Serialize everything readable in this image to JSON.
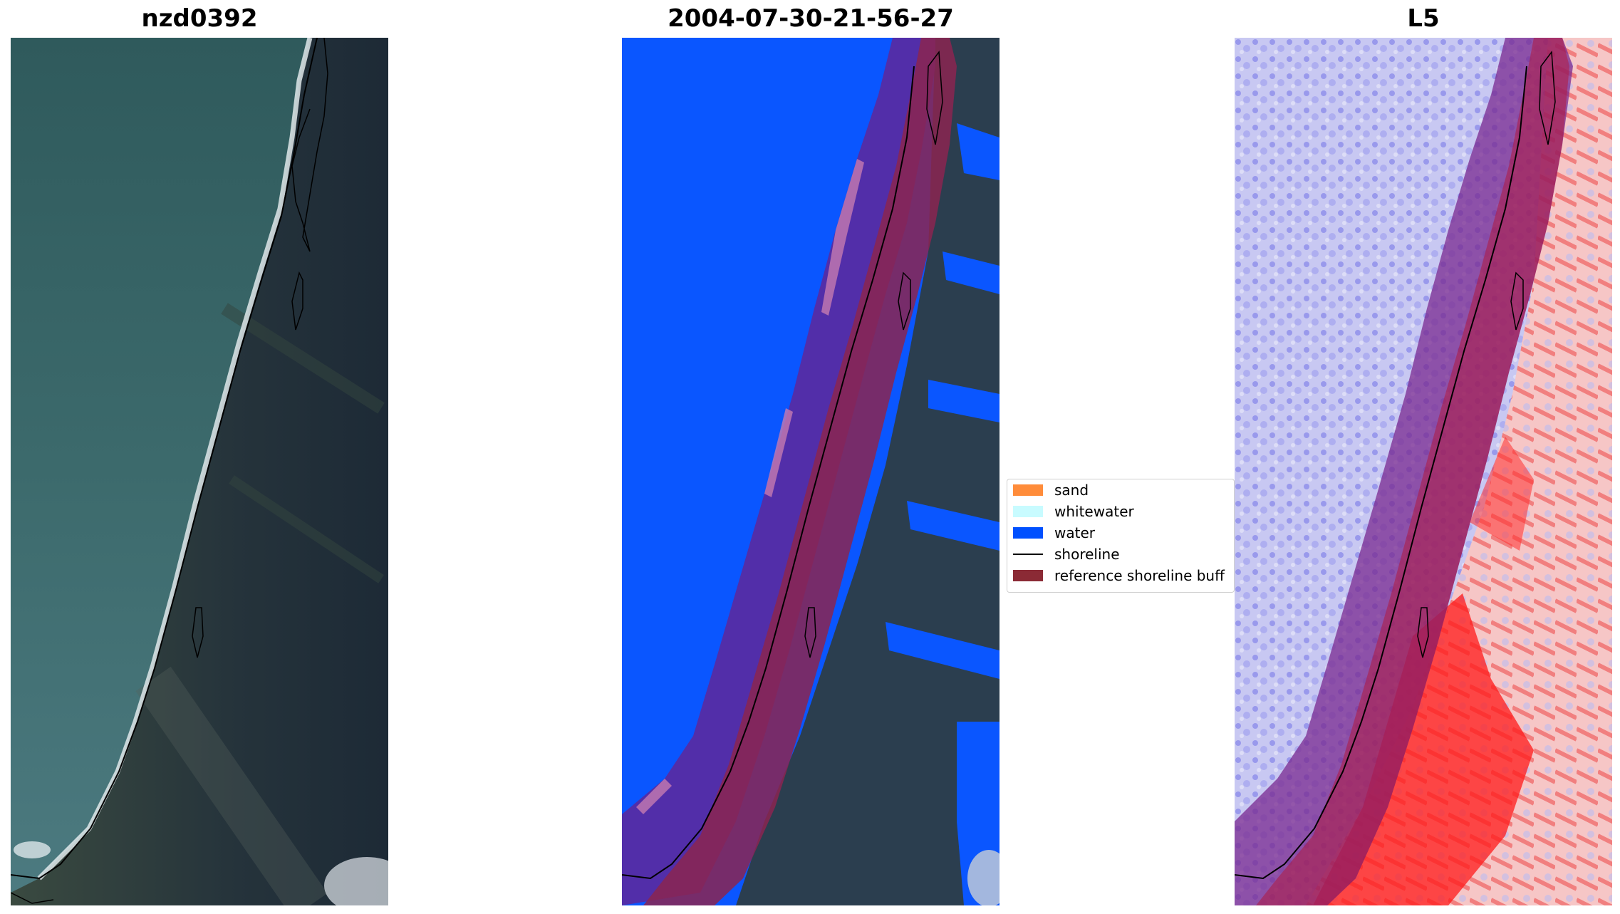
{
  "panels": [
    {
      "title": "nzd0392"
    },
    {
      "title": "2004-07-30-21-56-27"
    },
    {
      "title": "L5"
    }
  ],
  "legend": {
    "items": [
      {
        "label": "sand",
        "color": "#ff8c3a",
        "kind": "patch"
      },
      {
        "label": "whitewater",
        "color": "#c8fbff",
        "kind": "patch"
      },
      {
        "label": "water",
        "color": "#0050ff",
        "kind": "patch"
      },
      {
        "label": "shoreline",
        "color": "#000000",
        "kind": "line"
      },
      {
        "label": "reference shoreline buff",
        "color": "#8b2a35",
        "kind": "patch"
      }
    ]
  }
}
